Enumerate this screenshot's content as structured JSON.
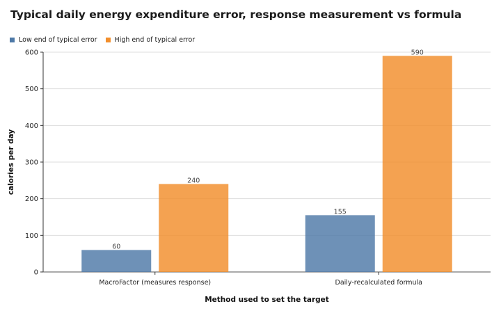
{
  "chart_data": {
    "type": "bar",
    "title": "Typical daily energy expenditure error, response measurement vs formula",
    "categories": [
      "MacroFactor (measures response)",
      "Daily-recalculated formula"
    ],
    "series": [
      {
        "name": "Low end of typical error",
        "values": [
          60,
          155
        ],
        "color": "#4e79a7"
      },
      {
        "name": "High end of typical error",
        "values": [
          240,
          590
        ],
        "color": "#f28e2b"
      }
    ],
    "xlabel": "Method used to set the target",
    "ylabel": "calories per day",
    "ylim": [
      0,
      600
    ],
    "yticks": [
      0,
      100,
      200,
      300,
      400,
      500,
      600
    ],
    "grid": true,
    "legend_position": "top-left"
  }
}
